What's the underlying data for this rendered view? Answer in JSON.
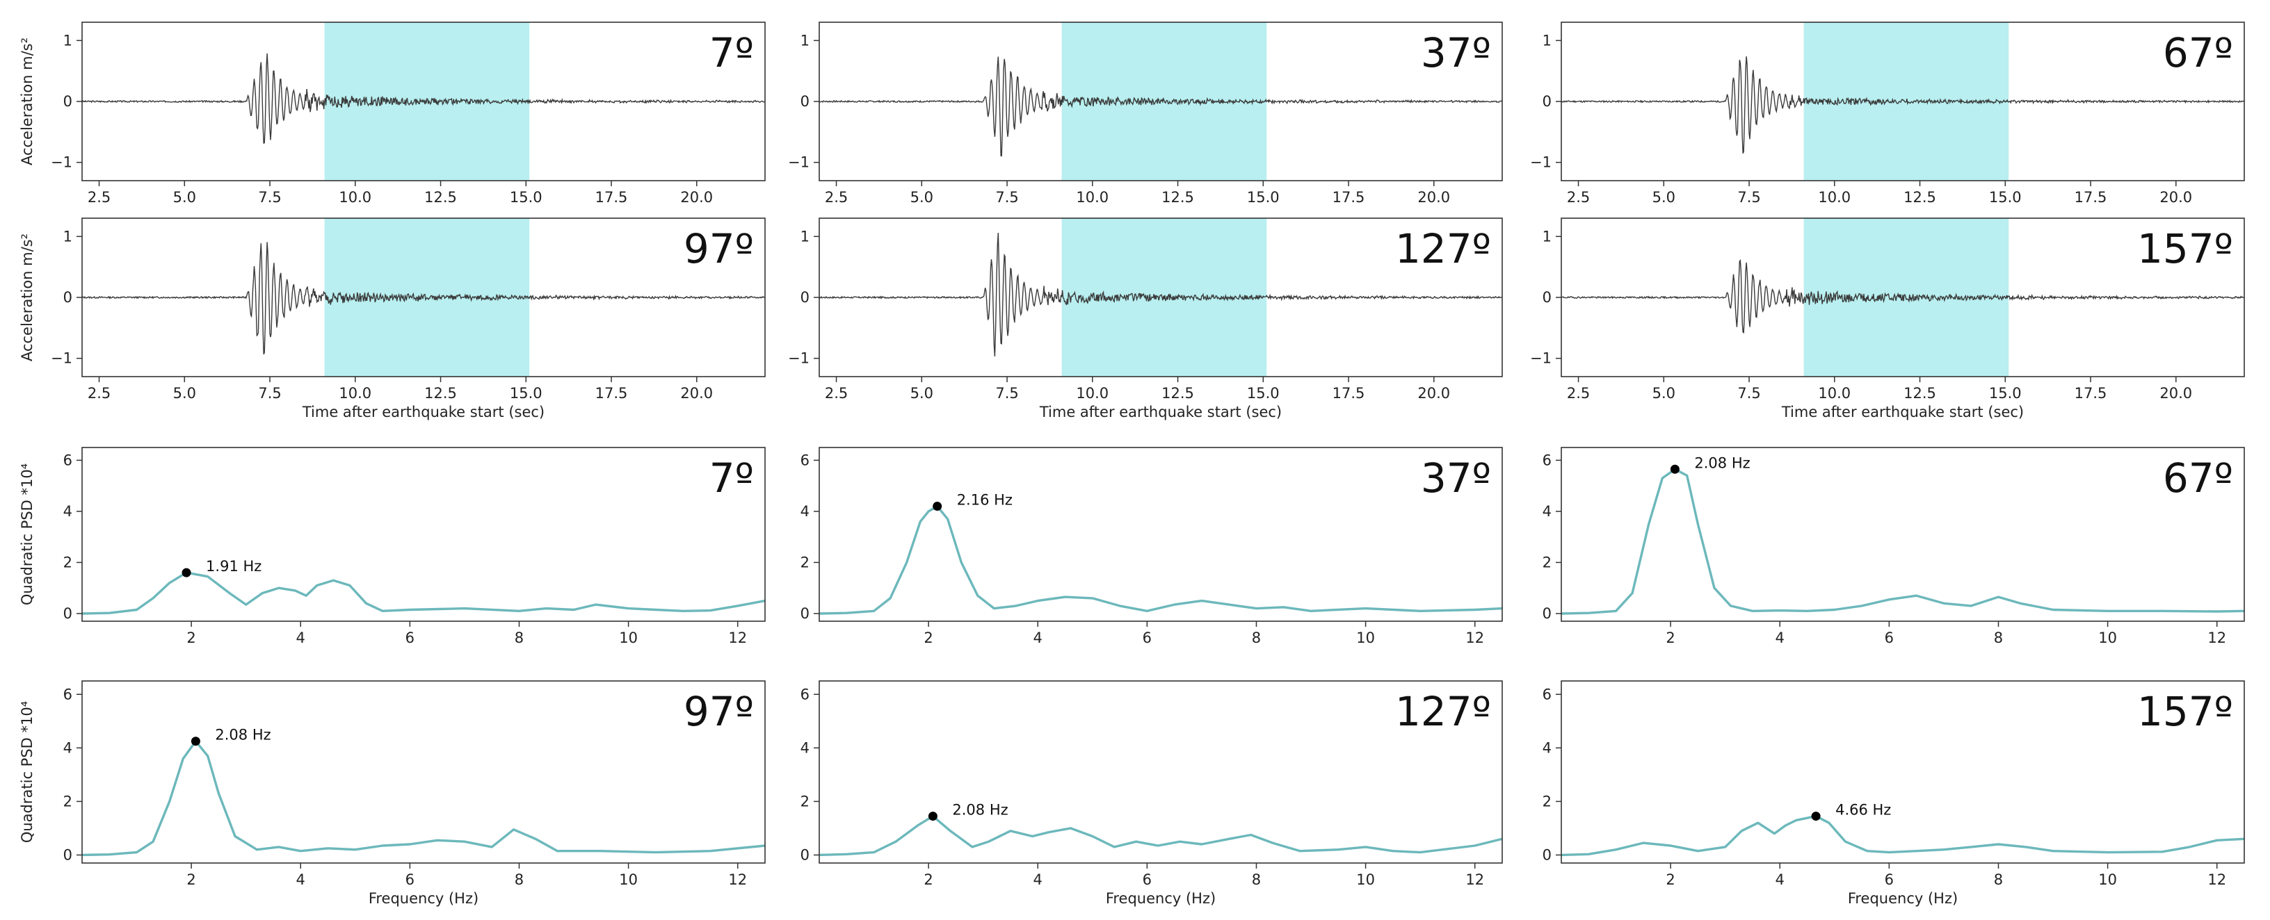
{
  "figure": {
    "description_free": true
  },
  "chart_data": [
    {
      "type": "line",
      "panel": "accel",
      "angle": "7º",
      "xlim": [
        2.0,
        22.0
      ],
      "ylim": [
        -1.3,
        1.3
      ],
      "xticks": [
        2.5,
        5.0,
        7.5,
        10.0,
        12.5,
        15.0,
        17.5,
        20.0
      ],
      "xtick_labels": [
        "2.5",
        "5.0",
        "7.5",
        "10.0",
        "12.5",
        "15.0",
        "17.5",
        "20.0"
      ],
      "yticks": [
        -1,
        0,
        1
      ],
      "ytick_labels": [
        "−1",
        "0",
        "1"
      ],
      "ylabel": "Acceleration m/s²",
      "xlabel": "",
      "highlight": [
        9.1,
        15.1
      ],
      "signal": {
        "onset": 6.8,
        "peak_t": 7.35,
        "amplitude": 0.95,
        "tail": 0.12,
        "seed": 3
      }
    },
    {
      "type": "line",
      "panel": "accel",
      "angle": "37º",
      "xlim": [
        2.0,
        22.0
      ],
      "ylim": [
        -1.3,
        1.3
      ],
      "xticks": [
        2.5,
        5.0,
        7.5,
        10.0,
        12.5,
        15.0,
        17.5,
        20.0
      ],
      "xtick_labels": [
        "2.5",
        "5.0",
        "7.5",
        "10.0",
        "12.5",
        "15.0",
        "17.5",
        "20.0"
      ],
      "yticks": [
        -1,
        0,
        1
      ],
      "ytick_labels": [
        "−1",
        "0",
        "1"
      ],
      "ylabel": "",
      "xlabel": "",
      "highlight": [
        9.1,
        15.1
      ],
      "signal": {
        "onset": 6.8,
        "peak_t": 7.35,
        "amplitude": 1.0,
        "tail": 0.1,
        "seed": 7
      }
    },
    {
      "type": "line",
      "panel": "accel",
      "angle": "67º",
      "xlim": [
        2.0,
        22.0
      ],
      "ylim": [
        -1.3,
        1.3
      ],
      "xticks": [
        2.5,
        5.0,
        7.5,
        10.0,
        12.5,
        15.0,
        17.5,
        20.0
      ],
      "xtick_labels": [
        "2.5",
        "5.0",
        "7.5",
        "10.0",
        "12.5",
        "15.0",
        "17.5",
        "20.0"
      ],
      "yticks": [
        -1,
        0,
        1
      ],
      "ytick_labels": [
        "−1",
        "0",
        "1"
      ],
      "ylabel": "",
      "xlabel": "",
      "highlight": [
        9.1,
        15.1
      ],
      "signal": {
        "onset": 6.8,
        "peak_t": 7.3,
        "amplitude": 1.0,
        "tail": 0.08,
        "seed": 11
      }
    },
    {
      "type": "line",
      "panel": "accel",
      "angle": "97º",
      "xlim": [
        2.0,
        22.0
      ],
      "ylim": [
        -1.3,
        1.3
      ],
      "xticks": [
        2.5,
        5.0,
        7.5,
        10.0,
        12.5,
        15.0,
        17.5,
        20.0
      ],
      "xtick_labels": [
        "2.5",
        "5.0",
        "7.5",
        "10.0",
        "12.5",
        "15.0",
        "17.5",
        "20.0"
      ],
      "yticks": [
        -1,
        0,
        1
      ],
      "ytick_labels": [
        "−1",
        "0",
        "1"
      ],
      "ylabel": "Acceleration m/s²",
      "xlabel": "Time after earthquake start (sec)",
      "highlight": [
        9.1,
        15.1
      ],
      "signal": {
        "onset": 6.8,
        "peak_t": 7.3,
        "amplitude": 1.15,
        "tail": 0.12,
        "seed": 13
      }
    },
    {
      "type": "line",
      "panel": "accel",
      "angle": "127º",
      "xlim": [
        2.0,
        22.0
      ],
      "ylim": [
        -1.3,
        1.3
      ],
      "xticks": [
        2.5,
        5.0,
        7.5,
        10.0,
        12.5,
        15.0,
        17.5,
        20.0
      ],
      "xtick_labels": [
        "2.5",
        "5.0",
        "7.5",
        "10.0",
        "12.5",
        "15.0",
        "17.5",
        "20.0"
      ],
      "yticks": [
        -1,
        0,
        1
      ],
      "ytick_labels": [
        "−1",
        "0",
        "1"
      ],
      "ylabel": "",
      "xlabel": "Time after earthquake start (sec)",
      "highlight": [
        9.1,
        15.1
      ],
      "signal": {
        "onset": 6.8,
        "peak_t": 7.2,
        "amplitude": 1.2,
        "tail": 0.12,
        "seed": 17
      }
    },
    {
      "type": "line",
      "panel": "accel",
      "angle": "157º",
      "xlim": [
        2.0,
        22.0
      ],
      "ylim": [
        -1.3,
        1.3
      ],
      "xticks": [
        2.5,
        5.0,
        7.5,
        10.0,
        12.5,
        15.0,
        17.5,
        20.0
      ],
      "xtick_labels": [
        "2.5",
        "5.0",
        "7.5",
        "10.0",
        "12.5",
        "15.0",
        "17.5",
        "20.0"
      ],
      "yticks": [
        -1,
        0,
        1
      ],
      "ytick_labels": [
        "−1",
        "0",
        "1"
      ],
      "ylabel": "",
      "xlabel": "Time after earthquake start (sec)",
      "highlight": [
        9.1,
        15.1
      ],
      "signal": {
        "onset": 6.8,
        "peak_t": 7.3,
        "amplitude": 0.8,
        "tail": 0.13,
        "seed": 19
      }
    },
    {
      "type": "line",
      "panel": "psd",
      "angle": "7º",
      "xlim": [
        0,
        12.5
      ],
      "ylim": [
        -0.3,
        6.5
      ],
      "xticks": [
        2,
        4,
        6,
        8,
        10,
        12
      ],
      "xtick_labels": [
        "2",
        "4",
        "6",
        "8",
        "10",
        "12"
      ],
      "yticks": [
        0,
        2,
        4,
        6
      ],
      "ytick_labels": [
        "0",
        "2",
        "4",
        "6"
      ],
      "ylabel": "Quadratic PSD *10⁴",
      "xlabel": "",
      "peak": {
        "x": 1.91,
        "y": 1.6,
        "label": "1.91 Hz"
      },
      "x": [
        0,
        0.5,
        1.0,
        1.3,
        1.6,
        1.91,
        2.3,
        2.7,
        3.0,
        3.3,
        3.6,
        3.9,
        4.1,
        4.3,
        4.6,
        4.9,
        5.2,
        5.5,
        6.0,
        7.0,
        8.0,
        8.5,
        9.0,
        9.4,
        10.0,
        10.5,
        11.0,
        11.5,
        12.0,
        12.5
      ],
      "y": [
        0.0,
        0.02,
        0.15,
        0.6,
        1.2,
        1.6,
        1.45,
        0.8,
        0.35,
        0.8,
        1.0,
        0.9,
        0.7,
        1.1,
        1.3,
        1.1,
        0.4,
        0.1,
        0.15,
        0.2,
        0.1,
        0.2,
        0.15,
        0.35,
        0.2,
        0.15,
        0.1,
        0.12,
        0.3,
        0.5
      ]
    },
    {
      "type": "line",
      "panel": "psd",
      "angle": "37º",
      "xlim": [
        0,
        12.5
      ],
      "ylim": [
        -0.3,
        6.5
      ],
      "xticks": [
        2,
        4,
        6,
        8,
        10,
        12
      ],
      "xtick_labels": [
        "2",
        "4",
        "6",
        "8",
        "10",
        "12"
      ],
      "yticks": [
        0,
        2,
        4,
        6
      ],
      "ytick_labels": [
        "0",
        "2",
        "4",
        "6"
      ],
      "ylabel": "",
      "xlabel": "",
      "peak": {
        "x": 2.16,
        "y": 4.2,
        "label": "2.16 Hz"
      },
      "x": [
        0,
        0.5,
        1.0,
        1.3,
        1.6,
        1.85,
        2.0,
        2.16,
        2.35,
        2.6,
        2.9,
        3.2,
        3.6,
        4.0,
        4.5,
        5.0,
        5.5,
        6.0,
        6.5,
        7.0,
        7.5,
        8.0,
        8.5,
        9.0,
        10.0,
        11.0,
        12.0,
        12.5
      ],
      "y": [
        0.0,
        0.02,
        0.1,
        0.6,
        2.0,
        3.6,
        4.0,
        4.2,
        3.7,
        2.0,
        0.7,
        0.2,
        0.3,
        0.5,
        0.65,
        0.6,
        0.3,
        0.1,
        0.35,
        0.5,
        0.35,
        0.2,
        0.25,
        0.1,
        0.2,
        0.1,
        0.15,
        0.2
      ]
    },
    {
      "type": "line",
      "panel": "psd",
      "angle": "67º",
      "xlim": [
        0,
        12.5
      ],
      "ylim": [
        -0.3,
        6.5
      ],
      "xticks": [
        2,
        4,
        6,
        8,
        10,
        12
      ],
      "xtick_labels": [
        "2",
        "4",
        "6",
        "8",
        "10",
        "12"
      ],
      "yticks": [
        0,
        2,
        4,
        6
      ],
      "ytick_labels": [
        "0",
        "2",
        "4",
        "6"
      ],
      "ylabel": "",
      "xlabel": "",
      "peak": {
        "x": 2.08,
        "y": 5.65,
        "label": "2.08 Hz"
      },
      "x": [
        0,
        0.5,
        1.0,
        1.3,
        1.6,
        1.85,
        2.08,
        2.3,
        2.5,
        2.8,
        3.1,
        3.5,
        4.0,
        4.5,
        5.0,
        5.5,
        6.0,
        6.5,
        7.0,
        7.5,
        8.0,
        8.4,
        9.0,
        10.0,
        11.0,
        12.0,
        12.5
      ],
      "y": [
        0.0,
        0.02,
        0.1,
        0.8,
        3.5,
        5.3,
        5.65,
        5.4,
        3.5,
        1.0,
        0.3,
        0.1,
        0.12,
        0.1,
        0.15,
        0.3,
        0.55,
        0.7,
        0.4,
        0.3,
        0.65,
        0.4,
        0.15,
        0.1,
        0.1,
        0.08,
        0.1
      ]
    },
    {
      "type": "line",
      "panel": "psd",
      "angle": "97º",
      "xlim": [
        0,
        12.5
      ],
      "ylim": [
        -0.3,
        6.5
      ],
      "xticks": [
        2,
        4,
        6,
        8,
        10,
        12
      ],
      "xtick_labels": [
        "2",
        "4",
        "6",
        "8",
        "10",
        "12"
      ],
      "yticks": [
        0,
        2,
        4,
        6
      ],
      "ytick_labels": [
        "0",
        "2",
        "4",
        "6"
      ],
      "ylabel": "Quadratic PSD *10⁴",
      "xlabel": "Frequency (Hz)",
      "peak": {
        "x": 2.08,
        "y": 4.25,
        "label": "2.08 Hz"
      },
      "x": [
        0,
        0.5,
        1.0,
        1.3,
        1.6,
        1.85,
        2.08,
        2.3,
        2.5,
        2.8,
        3.2,
        3.6,
        4.0,
        4.5,
        5.0,
        5.5,
        6.0,
        6.5,
        7.0,
        7.5,
        7.9,
        8.3,
        8.7,
        9.5,
        10.5,
        11.5,
        12.5
      ],
      "y": [
        0.0,
        0.02,
        0.1,
        0.5,
        2.0,
        3.6,
        4.25,
        3.7,
        2.3,
        0.7,
        0.2,
        0.3,
        0.15,
        0.25,
        0.2,
        0.35,
        0.4,
        0.55,
        0.5,
        0.3,
        0.95,
        0.6,
        0.15,
        0.15,
        0.1,
        0.15,
        0.35
      ]
    },
    {
      "type": "line",
      "panel": "psd",
      "angle": "127º",
      "xlim": [
        0,
        12.5
      ],
      "ylim": [
        -0.3,
        6.5
      ],
      "xticks": [
        2,
        4,
        6,
        8,
        10,
        12
      ],
      "xtick_labels": [
        "2",
        "4",
        "6",
        "8",
        "10",
        "12"
      ],
      "yticks": [
        0,
        2,
        4,
        6
      ],
      "ytick_labels": [
        "0",
        "2",
        "4",
        "6"
      ],
      "ylabel": "",
      "xlabel": "Frequency (Hz)",
      "peak": {
        "x": 2.08,
        "y": 1.45,
        "label": "2.08 Hz"
      },
      "x": [
        0,
        0.5,
        1.0,
        1.4,
        1.8,
        2.08,
        2.4,
        2.8,
        3.1,
        3.5,
        3.9,
        4.2,
        4.6,
        5.0,
        5.4,
        5.8,
        6.2,
        6.6,
        7.0,
        7.5,
        7.9,
        8.3,
        8.8,
        9.5,
        10.0,
        10.5,
        11.0,
        12.0,
        12.5
      ],
      "y": [
        0.0,
        0.03,
        0.1,
        0.5,
        1.1,
        1.45,
        0.9,
        0.3,
        0.5,
        0.9,
        0.7,
        0.85,
        1.0,
        0.7,
        0.3,
        0.5,
        0.35,
        0.5,
        0.4,
        0.6,
        0.75,
        0.45,
        0.15,
        0.2,
        0.3,
        0.15,
        0.1,
        0.35,
        0.6
      ]
    },
    {
      "type": "line",
      "panel": "psd",
      "angle": "157º",
      "xlim": [
        0,
        12.5
      ],
      "ylim": [
        -0.3,
        6.5
      ],
      "xticks": [
        2,
        4,
        6,
        8,
        10,
        12
      ],
      "xtick_labels": [
        "2",
        "4",
        "6",
        "8",
        "10",
        "12"
      ],
      "yticks": [
        0,
        2,
        4,
        6
      ],
      "ytick_labels": [
        "0",
        "2",
        "4",
        "6"
      ],
      "ylabel": "",
      "xlabel": "Frequency (Hz)",
      "peak": {
        "x": 4.66,
        "y": 1.45,
        "label": "4.66 Hz"
      },
      "x": [
        0,
        0.5,
        1.0,
        1.5,
        2.0,
        2.5,
        3.0,
        3.3,
        3.6,
        3.9,
        4.1,
        4.3,
        4.66,
        4.9,
        5.2,
        5.6,
        6.0,
        6.5,
        7.0,
        7.5,
        8.0,
        8.5,
        9.0,
        10.0,
        11.0,
        11.5,
        12.0,
        12.5
      ],
      "y": [
        0.0,
        0.03,
        0.2,
        0.45,
        0.35,
        0.15,
        0.3,
        0.9,
        1.2,
        0.8,
        1.1,
        1.3,
        1.45,
        1.2,
        0.5,
        0.15,
        0.1,
        0.15,
        0.2,
        0.3,
        0.4,
        0.3,
        0.15,
        0.1,
        0.12,
        0.3,
        0.55,
        0.6
      ]
    }
  ]
}
